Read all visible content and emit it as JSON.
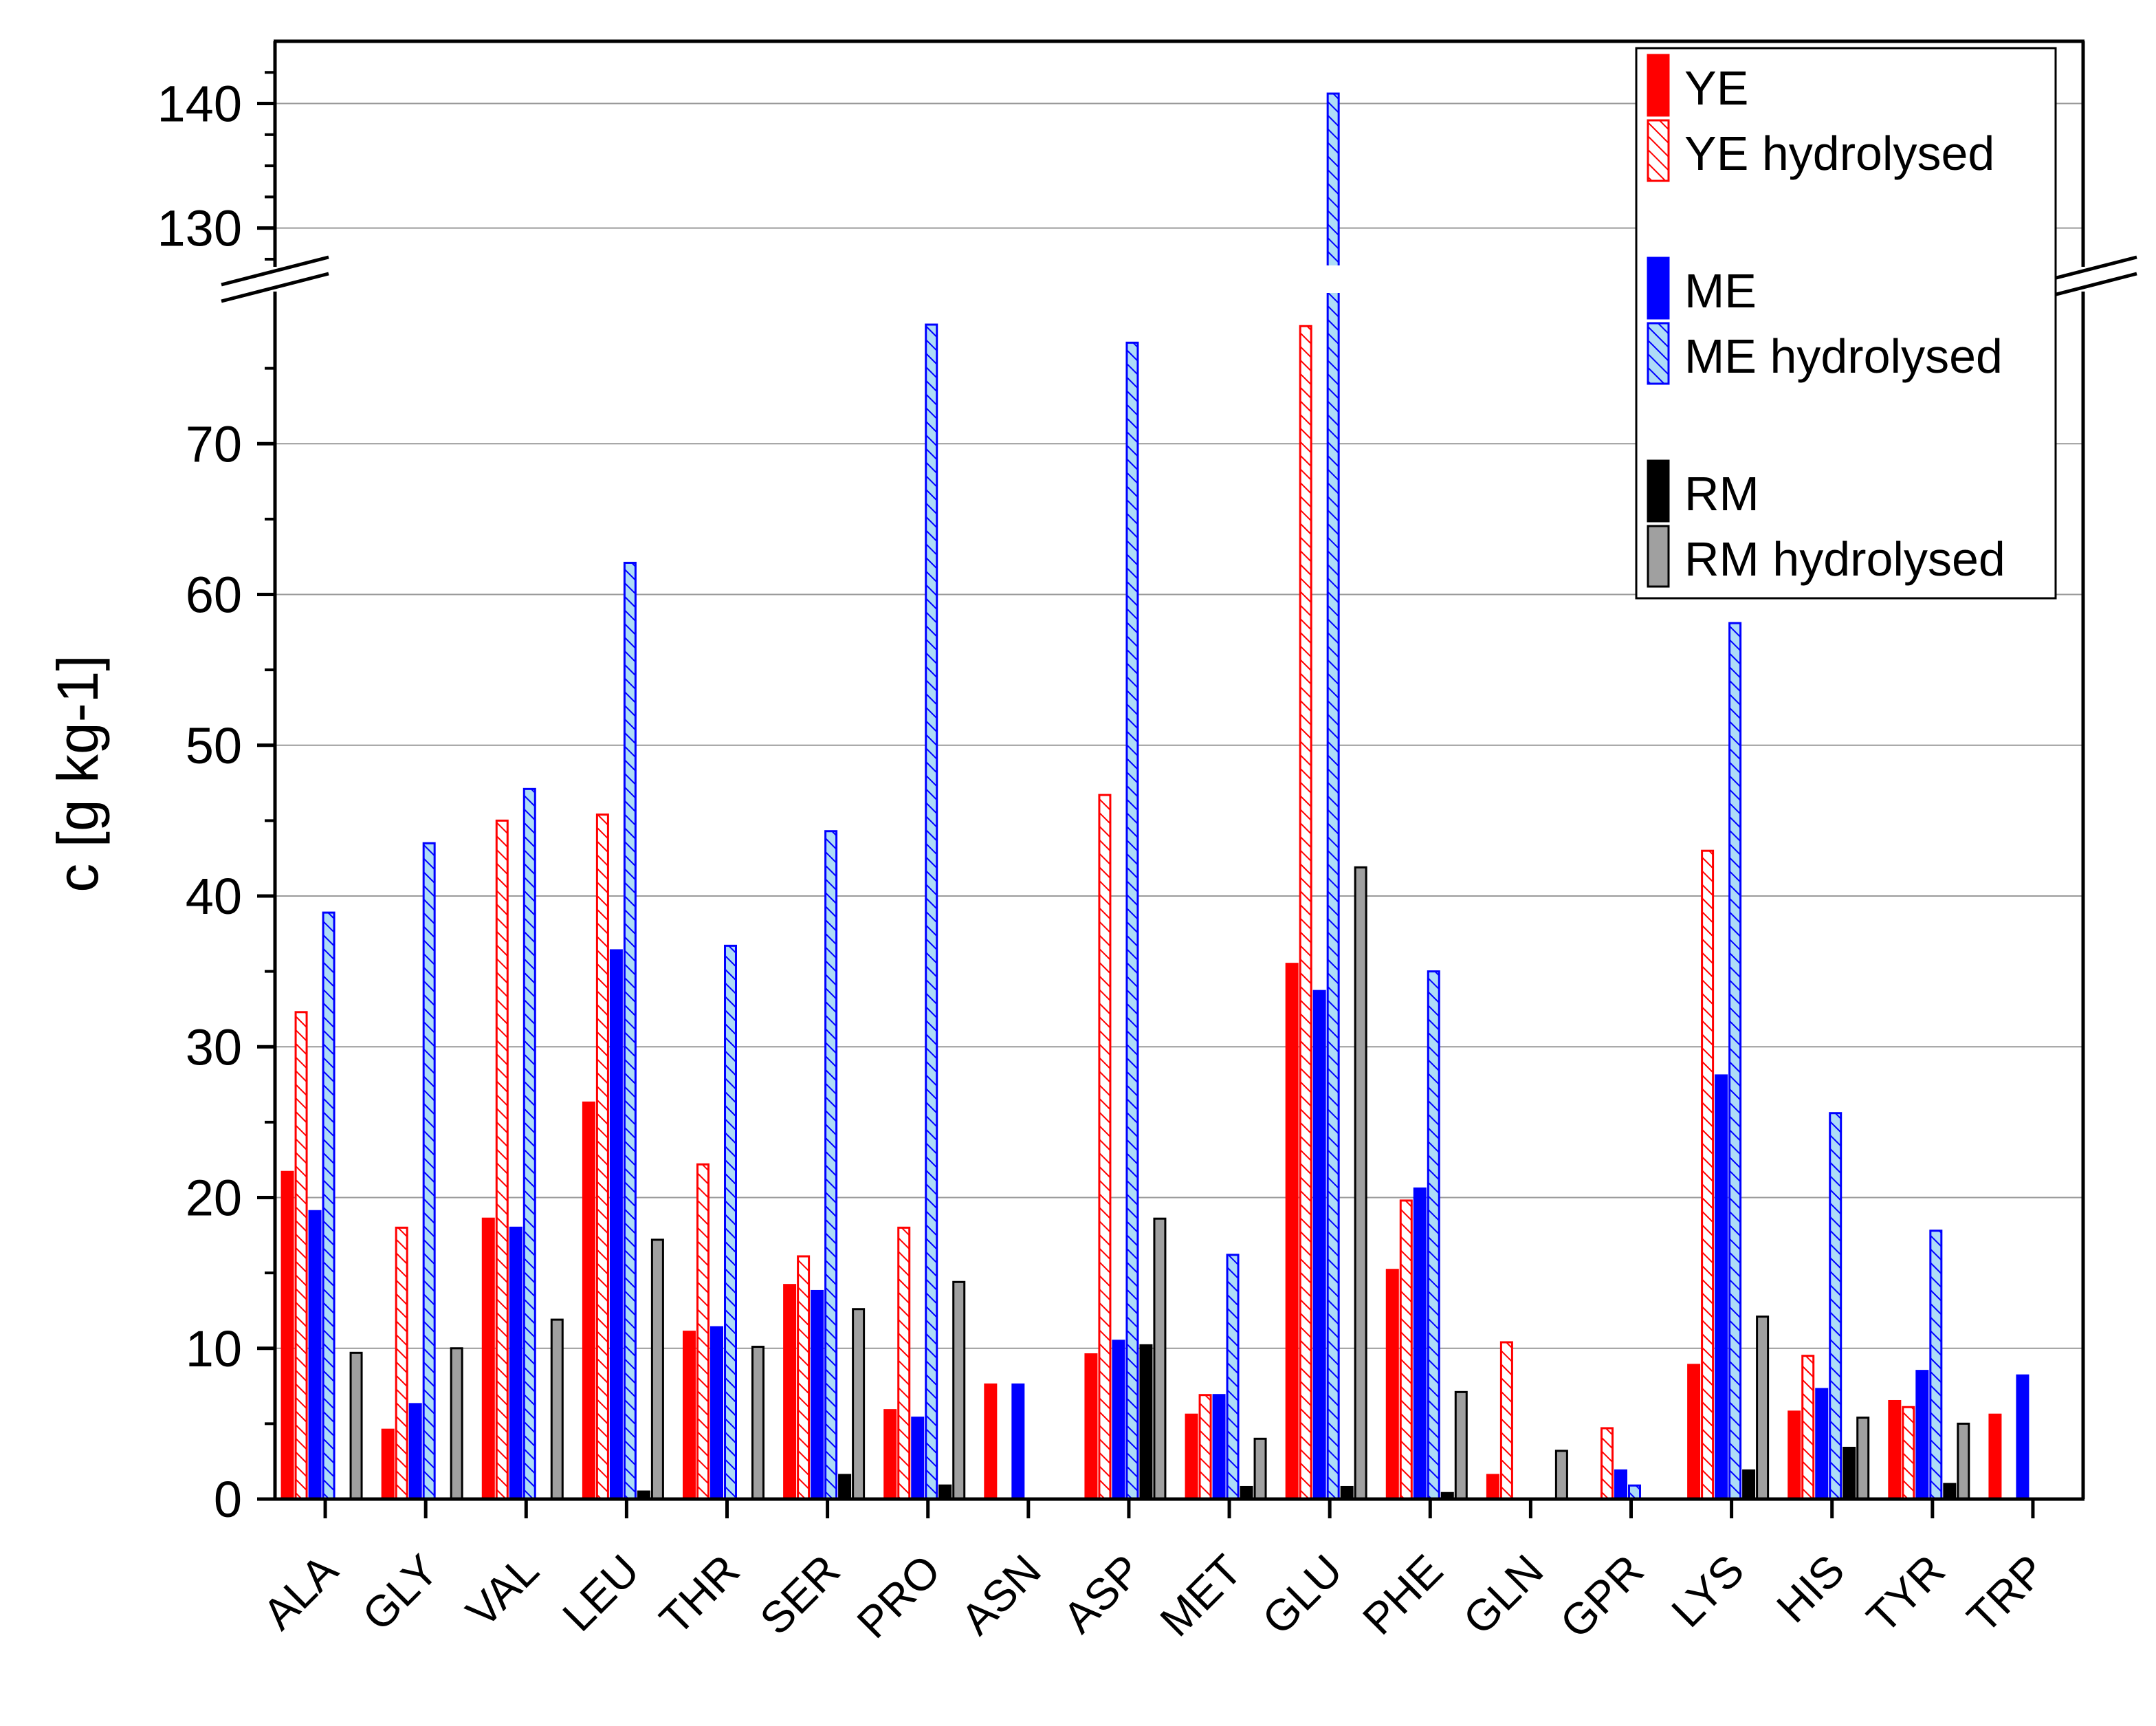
{
  "chart_data": {
    "type": "bar",
    "title": "",
    "xlabel": "",
    "ylabel": "c [g kg-1]",
    "axis_break": {
      "lower_range": [
        0,
        80
      ],
      "upper_range": [
        127,
        145
      ]
    },
    "yticks_lower": [
      "0",
      "10",
      "20",
      "30",
      "40",
      "50",
      "60",
      "70"
    ],
    "yticks_upper": [
      "130",
      "140"
    ],
    "grid": true,
    "legend_position": "top-right",
    "categories": [
      "ALA",
      "GLY",
      "VAL",
      "LEU",
      "THR",
      "SER",
      "PRO",
      "ASN",
      "ASP",
      "MET",
      "GLU",
      "PHE",
      "GLN",
      "GPR",
      "LYS",
      "HIS",
      "TYR",
      "TRP"
    ],
    "series": [
      {
        "name": "YE",
        "style": "solid",
        "color": "#ff0000",
        "values": [
          21.7,
          4.6,
          18.6,
          26.3,
          11.1,
          14.2,
          5.9,
          7.6,
          9.6,
          5.6,
          35.5,
          15.2,
          1.6,
          0,
          8.9,
          5.8,
          6.5,
          5.6
        ]
      },
      {
        "name": "YE hydrolysed",
        "style": "hatch",
        "color": "#ff0000",
        "values": [
          32.3,
          18.0,
          45.0,
          45.4,
          22.2,
          16.1,
          18.0,
          0,
          46.7,
          6.9,
          77.8,
          19.8,
          10.4,
          4.7,
          43.0,
          9.5,
          6.1,
          0
        ]
      },
      {
        "name": "ME",
        "style": "solid",
        "color": "#0000ff",
        "values": [
          19.1,
          6.3,
          18.0,
          36.4,
          11.4,
          13.8,
          5.4,
          7.6,
          10.5,
          6.9,
          33.7,
          20.6,
          0,
          1.9,
          28.1,
          7.3,
          8.5,
          8.2
        ]
      },
      {
        "name": "ME hydrolysed",
        "style": "hatch",
        "color": "#0000ff",
        "fill": "#aedcf7",
        "values": [
          38.9,
          43.5,
          47.1,
          62.1,
          36.7,
          44.3,
          77.9,
          0,
          76.7,
          16.2,
          140.8,
          35.0,
          0,
          0.9,
          58.1,
          25.6,
          17.8,
          0
        ]
      },
      {
        "name": "RM",
        "style": "solid",
        "color": "#000000",
        "values": [
          0,
          0,
          0,
          0.5,
          0,
          1.6,
          0.9,
          0,
          10.2,
          0.8,
          0.8,
          0.4,
          0,
          0,
          1.9,
          3.4,
          1.0,
          0
        ]
      },
      {
        "name": "RM hydrolysed",
        "style": "solid",
        "color": "#a0a0a0",
        "values": [
          9.7,
          10.0,
          11.9,
          17.2,
          10.1,
          12.6,
          14.4,
          0,
          18.6,
          4.0,
          41.9,
          7.1,
          3.2,
          0,
          12.1,
          5.4,
          5.0,
          0
        ]
      }
    ]
  }
}
